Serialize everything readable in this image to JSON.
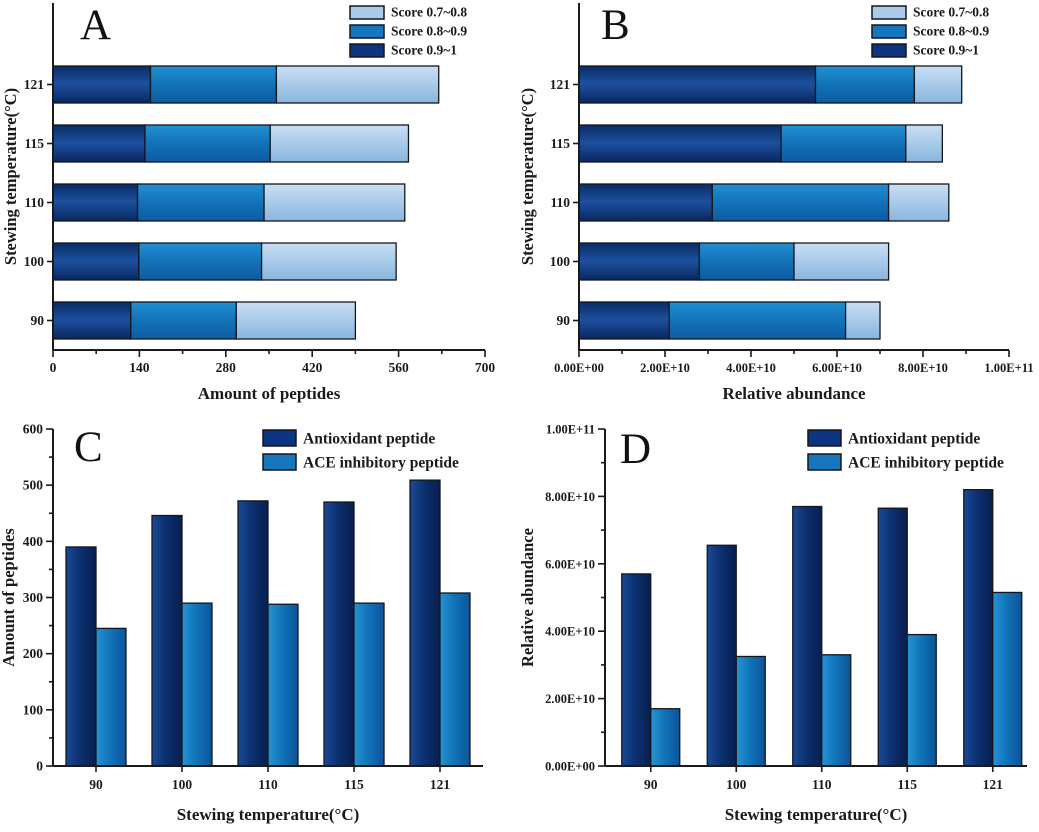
{
  "figure": {
    "description": "Four-panel bar chart figure of peptide amount and relative abundance at different stewing temperatures"
  },
  "colors": {
    "dark": "#0e3380",
    "mid": "#1777be",
    "light": "#a9cbe9",
    "outline": "#14171c",
    "axis": "#1a1a1a",
    "text": "#1a1a1a",
    "background": "#ffffff"
  },
  "chart_data": [
    {
      "id": "A",
      "panel_label": "A",
      "type": "bar",
      "orientation": "horizontal",
      "stacked": true,
      "categories": [
        "90",
        "100",
        "110",
        "115",
        "121"
      ],
      "series": [
        {
          "name": "Score 0.9~1",
          "color": "dark",
          "values": [
            126,
            139,
            137,
            149,
            158
          ]
        },
        {
          "name": "Score 0.8~0.9",
          "color": "mid",
          "values": [
            171,
            199,
            205,
            203,
            204
          ]
        },
        {
          "name": "Score 0.7~0.8",
          "color": "light",
          "values": [
            193,
            218,
            228,
            224,
            263
          ]
        }
      ],
      "stack_totals": [
        490,
        556,
        570,
        576,
        625
      ],
      "legend": [
        {
          "label": "Score 0.7~0.8",
          "color": "light"
        },
        {
          "label": "Score 0.8~0.9",
          "color": "mid"
        },
        {
          "label": "Score 0.9~1",
          "color": "dark"
        }
      ],
      "xlabel": "Amount of peptides",
      "ylabel": "Stewing temperature(°C)",
      "xlim": [
        0,
        700
      ],
      "ticks": [
        {
          "v": 0,
          "label": "0"
        },
        {
          "v": 140,
          "label": "140"
        },
        {
          "v": 280,
          "label": "280"
        },
        {
          "v": 420,
          "label": "420"
        },
        {
          "v": 560,
          "label": "560"
        },
        {
          "v": 700,
          "label": "700"
        }
      ],
      "minor_tick_step": 70,
      "grid": false,
      "legend_position": "top-right"
    },
    {
      "id": "B",
      "panel_label": "B",
      "type": "bar",
      "orientation": "horizontal",
      "stacked": true,
      "categories": [
        "90",
        "100",
        "110",
        "115",
        "121"
      ],
      "series": [
        {
          "name": "Score 0.9~1",
          "color": "dark",
          "values": [
            21000000000.0,
            28000000000.0,
            31000000000.0,
            47000000000.0,
            55000000000.0
          ]
        },
        {
          "name": "Score 0.8~0.9",
          "color": "mid",
          "values": [
            41000000000.0,
            22000000000.0,
            41000000000.0,
            29000000000.0,
            23000000000.0
          ]
        },
        {
          "name": "Score 0.7~0.8",
          "color": "light",
          "values": [
            8000000000.0,
            22000000000.0,
            14000000000.0,
            8500000000.0,
            11000000000.0
          ]
        }
      ],
      "stack_totals": [
        70000000000.0,
        72000000000.0,
        86000000000.0,
        84500000000.0,
        89000000000.0
      ],
      "legend": [
        {
          "label": "Score 0.7~0.8",
          "color": "light"
        },
        {
          "label": "Score 0.8~0.9",
          "color": "mid"
        },
        {
          "label": "Score 0.9~1",
          "color": "dark"
        }
      ],
      "xlabel": "Relative abundance",
      "ylabel": "Stewing temperature(°C)",
      "xlim": [
        0,
        100000000000.0
      ],
      "ticks": [
        {
          "v": 0,
          "label": "0.00E+00"
        },
        {
          "v": 20000000000.0,
          "label": "2.00E+10"
        },
        {
          "v": 40000000000.0,
          "label": "4.00E+10"
        },
        {
          "v": 60000000000.0,
          "label": "6.00E+10"
        },
        {
          "v": 80000000000.0,
          "label": "8.00E+10"
        },
        {
          "v": 100000000000.0,
          "label": "1.00E+11"
        }
      ],
      "minor_tick_step": 10000000000.0,
      "grid": false,
      "legend_position": "top-right"
    },
    {
      "id": "C",
      "panel_label": "C",
      "type": "bar",
      "orientation": "vertical",
      "stacked": false,
      "categories": [
        "90",
        "100",
        "110",
        "115",
        "121"
      ],
      "series": [
        {
          "name": "Antioxidant peptide",
          "color": "dark",
          "values": [
            390,
            446,
            472,
            470,
            509
          ]
        },
        {
          "name": "ACE inhibitory peptide",
          "color": "mid",
          "values": [
            245,
            290,
            288,
            290,
            308
          ]
        }
      ],
      "legend": [
        {
          "label": "Antioxidant peptide",
          "color": "dark"
        },
        {
          "label": "ACE inhibitory peptide",
          "color": "mid"
        }
      ],
      "xlabel": "Stewing temperature(°C)",
      "ylabel": "Amount of peptides",
      "ylim": [
        0,
        600
      ],
      "ticks": [
        {
          "v": 0,
          "label": "0"
        },
        {
          "v": 100,
          "label": "100"
        },
        {
          "v": 200,
          "label": "200"
        },
        {
          "v": 300,
          "label": "300"
        },
        {
          "v": 400,
          "label": "400"
        },
        {
          "v": 500,
          "label": "500"
        },
        {
          "v": 600,
          "label": "600"
        }
      ],
      "minor_tick_step": 50,
      "grid": false,
      "legend_position": "top-right"
    },
    {
      "id": "D",
      "panel_label": "D",
      "type": "bar",
      "orientation": "vertical",
      "stacked": false,
      "categories": [
        "90",
        "100",
        "110",
        "115",
        "121"
      ],
      "series": [
        {
          "name": "Antioxidant peptide",
          "color": "dark",
          "values": [
            57000000000.0,
            65500000000.0,
            77000000000.0,
            76500000000.0,
            82000000000.0
          ]
        },
        {
          "name": "ACE inhibitory peptide",
          "color": "mid",
          "values": [
            17000000000.0,
            32500000000.0,
            33000000000.0,
            39000000000.0,
            51500000000.0
          ]
        }
      ],
      "legend": [
        {
          "label": "Antioxidant peptide",
          "color": "dark"
        },
        {
          "label": "ACE inhibitory peptide",
          "color": "mid"
        }
      ],
      "xlabel": "Stewing temperature(°C)",
      "ylabel": "Relative abundance",
      "ylim": [
        0,
        100000000000.0
      ],
      "ticks": [
        {
          "v": 0,
          "label": "0.00E+00"
        },
        {
          "v": 20000000000.0,
          "label": "2.00E+10"
        },
        {
          "v": 40000000000.0,
          "label": "4.00E+10"
        },
        {
          "v": 60000000000.0,
          "label": "6.00E+10"
        },
        {
          "v": 80000000000.0,
          "label": "8.00E+10"
        },
        {
          "v": 100000000000.0,
          "label": "1.00E+11"
        }
      ],
      "minor_tick_step": 10000000000.0,
      "grid": false,
      "legend_position": "top-right"
    }
  ]
}
